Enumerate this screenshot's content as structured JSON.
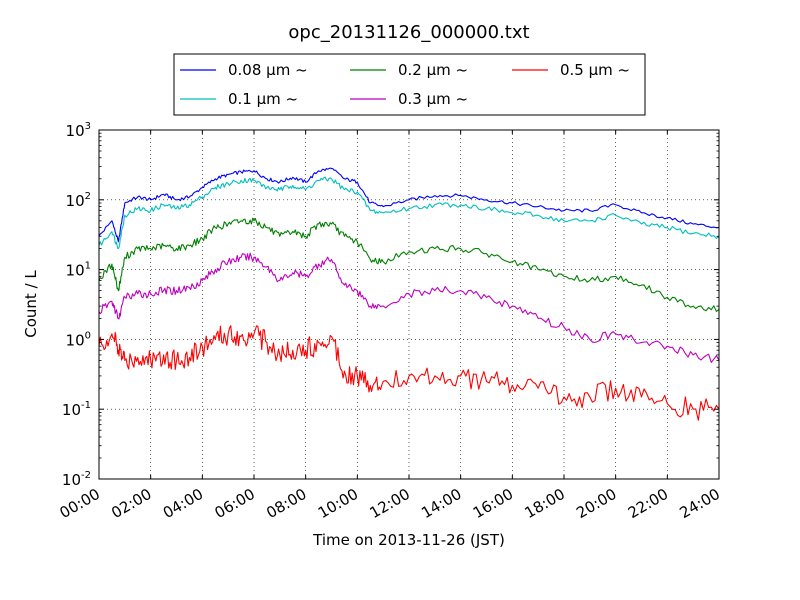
{
  "chart_data": {
    "type": "line",
    "title": "opc_20131126_000000.txt",
    "xlabel": "Time on 2013-11-26 (JST)",
    "ylabel": "Count / L",
    "x_unit": "hours since 00:00 JST",
    "xlim": [
      0,
      24
    ],
    "ylim": [
      0.01,
      1000
    ],
    "yscale": "log",
    "grid": true,
    "legend_position": "top-center",
    "x_ticks": [
      "00:00",
      "02:00",
      "04:00",
      "06:00",
      "08:00",
      "10:00",
      "12:00",
      "14:00",
      "16:00",
      "18:00",
      "20:00",
      "22:00",
      "24:00"
    ],
    "y_ticks": [
      {
        "base": "10",
        "exp": "-2"
      },
      {
        "base": "10",
        "exp": "-1"
      },
      {
        "base": "10",
        "exp": "0"
      },
      {
        "base": "10",
        "exp": "1"
      },
      {
        "base": "10",
        "exp": "2"
      },
      {
        "base": "10",
        "exp": "3"
      }
    ],
    "x": [
      0,
      0.5,
      0.75,
      1,
      1.5,
      2,
      2.5,
      3,
      3.5,
      4,
      4.5,
      5,
      5.5,
      6,
      6.5,
      7,
      7.5,
      8,
      8.5,
      9,
      9.5,
      10,
      10.5,
      11,
      12,
      13,
      14,
      15,
      16,
      17,
      18,
      19,
      20,
      21,
      22,
      23,
      24
    ],
    "series": [
      {
        "name": "0.08 μm ~",
        "color": "#0000ff",
        "values": [
          30,
          50,
          25,
          90,
          110,
          100,
          120,
          100,
          110,
          150,
          200,
          230,
          250,
          260,
          200,
          180,
          210,
          180,
          260,
          280,
          200,
          180,
          90,
          80,
          100,
          115,
          115,
          100,
          90,
          80,
          70,
          70,
          85,
          65,
          55,
          45,
          40
        ]
      },
      {
        "name": "0.1 μm ~",
        "color": "#00bfbf",
        "values": [
          22,
          35,
          20,
          60,
          75,
          70,
          85,
          75,
          85,
          110,
          150,
          170,
          190,
          190,
          150,
          140,
          160,
          140,
          190,
          200,
          140,
          130,
          70,
          65,
          75,
          85,
          85,
          75,
          65,
          60,
          50,
          50,
          60,
          45,
          40,
          33,
          30
        ]
      },
      {
        "name": "0.2 μm ~",
        "color": "#008000",
        "values": [
          7,
          12,
          5,
          15,
          20,
          20,
          22,
          20,
          22,
          28,
          40,
          45,
          50,
          50,
          40,
          30,
          35,
          30,
          45,
          45,
          30,
          25,
          14,
          13,
          18,
          20,
          20,
          17,
          13,
          10,
          8,
          7,
          8,
          6,
          4,
          3,
          2.7
        ]
      },
      {
        "name": "0.3 μm ~",
        "color": "#bf00bf",
        "values": [
          2.5,
          3.5,
          2,
          4,
          4.5,
          4.5,
          5,
          5,
          5.5,
          7,
          10,
          13,
          15,
          15,
          11,
          7,
          9,
          8,
          12,
          14,
          6,
          5,
          3,
          3,
          4.5,
          5,
          5,
          4,
          3,
          2,
          1.5,
          1,
          1.2,
          0.9,
          0.8,
          0.6,
          0.5
        ]
      },
      {
        "name": "0.5 μm ~",
        "color": "#ff0000",
        "values": [
          0.8,
          1.2,
          0.7,
          0.5,
          0.55,
          0.5,
          0.6,
          0.5,
          0.55,
          0.8,
          1,
          1.2,
          1.1,
          1.2,
          0.9,
          0.6,
          0.7,
          0.7,
          0.9,
          1.1,
          0.35,
          0.3,
          0.22,
          0.25,
          0.3,
          0.3,
          0.3,
          0.25,
          0.22,
          0.2,
          0.15,
          0.15,
          0.2,
          0.15,
          0.12,
          0.1,
          0.1
        ]
      }
    ]
  }
}
